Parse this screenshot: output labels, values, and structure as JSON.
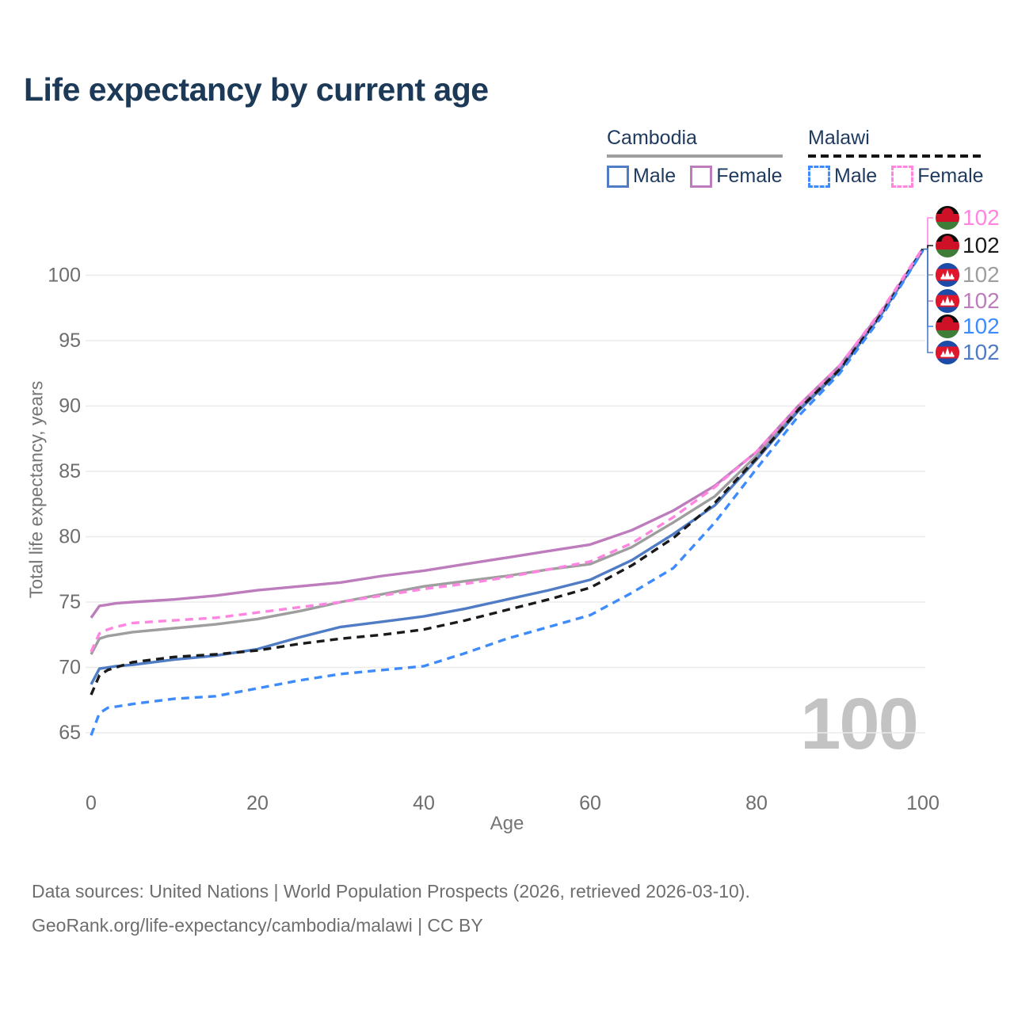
{
  "header": {
    "title": "Life expectancy by current age"
  },
  "legend": {
    "cambodia": {
      "label": "Cambodia",
      "line_style": "solid",
      "underline_color": "#9e9e9e",
      "male_label": "Male",
      "male_color": "#4f7cc4",
      "female_label": "Female",
      "female_color": "#bd7cbb"
    },
    "malawi": {
      "label": "Malawi",
      "line_style": "dashed",
      "underline_color": "#141414",
      "male_label": "Male",
      "male_color": "#3d8bfd",
      "female_label": "Female",
      "female_color": "#ff85e0"
    }
  },
  "watermark": "100",
  "footer": {
    "line1": "Data sources: United Nations | World Population Prospects (2026, retrieved 2026-03-10).",
    "line2": "GeoRank.org/life-expectancy/cambodia/malawi | CC BY"
  },
  "chart_data": {
    "type": "line",
    "title": "Life expectancy by current age",
    "xlabel": "Age",
    "ylabel": "Total life expectancy, years",
    "x_ticks": [
      0,
      20,
      40,
      60,
      80,
      100
    ],
    "y_ticks": [
      65,
      70,
      75,
      80,
      85,
      90,
      95,
      100
    ],
    "xlim": [
      0,
      100
    ],
    "ylim": [
      63,
      103
    ],
    "grid": "horizontal",
    "legend_position": "top-right",
    "x": [
      0,
      1,
      2,
      3,
      5,
      10,
      15,
      20,
      25,
      30,
      35,
      40,
      45,
      50,
      55,
      60,
      65,
      70,
      75,
      80,
      85,
      90,
      95,
      100
    ],
    "series": [
      {
        "id": "cambodia-total",
        "name": "Cambodia",
        "country": "Cambodia",
        "sex": "both",
        "style": "solid",
        "color": "#9e9e9e",
        "values": [
          71.0,
          72.2,
          72.4,
          72.5,
          72.7,
          73.0,
          73.3,
          73.7,
          74.3,
          75.0,
          75.6,
          76.2,
          76.6,
          77.0,
          77.5,
          77.9,
          79.2,
          81.1,
          83.1,
          86.2,
          89.8,
          92.9,
          97.1,
          102.0
        ]
      },
      {
        "id": "cambodia-male",
        "name": "Cambodia Male",
        "country": "Cambodia",
        "sex": "male",
        "style": "solid",
        "color": "#4f7cc4",
        "values": [
          68.7,
          69.9,
          70.0,
          70.1,
          70.2,
          70.6,
          70.9,
          71.4,
          72.3,
          73.1,
          73.5,
          73.9,
          74.5,
          75.2,
          75.9,
          76.7,
          78.2,
          80.2,
          82.4,
          85.9,
          89.6,
          92.7,
          97.0,
          101.9
        ]
      },
      {
        "id": "cambodia-female",
        "name": "Cambodia Female",
        "country": "Cambodia",
        "sex": "female",
        "style": "solid",
        "color": "#bd7cbb",
        "values": [
          73.8,
          74.7,
          74.8,
          74.9,
          75.0,
          75.2,
          75.5,
          75.9,
          76.2,
          76.5,
          77.0,
          77.4,
          77.9,
          78.4,
          78.9,
          79.4,
          80.5,
          82.0,
          83.9,
          86.5,
          90.0,
          93.1,
          97.2,
          102.0
        ]
      },
      {
        "id": "malawi-total",
        "name": "Malawi",
        "country": "Malawi",
        "sex": "both",
        "style": "dashed",
        "color": "#1a1a1a",
        "values": [
          67.9,
          69.4,
          69.8,
          70.0,
          70.4,
          70.8,
          71.0,
          71.3,
          71.8,
          72.2,
          72.5,
          72.9,
          73.6,
          74.4,
          75.2,
          76.1,
          77.8,
          79.9,
          82.6,
          86.0,
          89.7,
          92.8,
          97.0,
          102.0
        ]
      },
      {
        "id": "malawi-male",
        "name": "Malawi Male",
        "country": "Malawi",
        "sex": "male",
        "style": "dashed",
        "color": "#3d8bfd",
        "values": [
          64.8,
          66.5,
          66.9,
          67.0,
          67.2,
          67.6,
          67.8,
          68.4,
          69.0,
          69.5,
          69.8,
          70.1,
          71.1,
          72.2,
          73.1,
          74.0,
          75.7,
          77.6,
          81.1,
          85.2,
          89.2,
          92.5,
          96.8,
          101.9
        ]
      },
      {
        "id": "malawi-female",
        "name": "Malawi Female",
        "country": "Malawi",
        "sex": "female",
        "style": "dashed",
        "color": "#ff85e0",
        "values": [
          71.2,
          72.6,
          72.9,
          73.1,
          73.4,
          73.6,
          73.8,
          74.2,
          74.6,
          75.0,
          75.5,
          76.0,
          76.4,
          76.9,
          77.5,
          78.1,
          79.5,
          81.5,
          83.8,
          86.5,
          90.0,
          93.1,
          97.3,
          102.1
        ]
      }
    ],
    "end_labels": [
      {
        "series": "Malawi Female",
        "flag": "malawi",
        "color": "#ff85e0",
        "value": "102"
      },
      {
        "series": "Malawi",
        "flag": "malawi",
        "color": "#1a1a1a",
        "value": "102"
      },
      {
        "series": "Cambodia",
        "flag": "cambodia",
        "color": "#9e9e9e",
        "value": "102"
      },
      {
        "series": "Cambodia Female",
        "flag": "cambodia",
        "color": "#bd7cbb",
        "value": "102"
      },
      {
        "series": "Malawi Male",
        "flag": "malawi",
        "color": "#3d8bfd",
        "value": "102"
      },
      {
        "series": "Cambodia Male",
        "flag": "cambodia",
        "color": "#4f7cc4",
        "value": "102"
      }
    ]
  }
}
